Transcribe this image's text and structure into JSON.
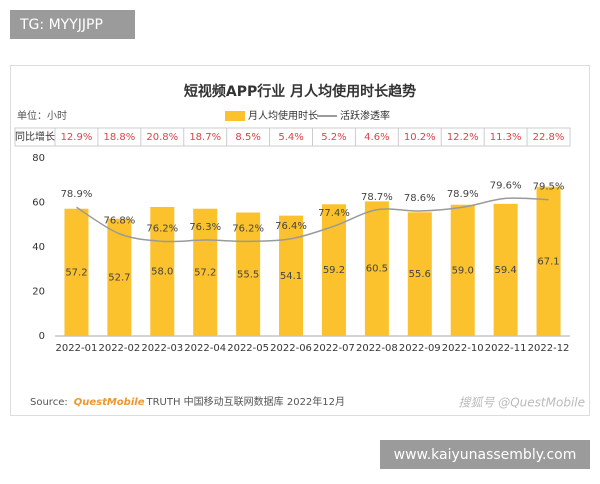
{
  "badge_top": "TG: MYYJJPP",
  "badge_bottom": "www.kaiyunassembly.com",
  "chart_data": {
    "type": "bar",
    "title": "短视频APP行业 月人均使用时长趋势",
    "unit_label": "单位：小时",
    "categories": [
      "2022-01",
      "2022-02",
      "2022-03",
      "2022-04",
      "2022-05",
      "2022-06",
      "2022-07",
      "2022-08",
      "2022-09",
      "2022-10",
      "2022-11",
      "2022-12"
    ],
    "series": [
      {
        "name": "月人均使用时长",
        "type": "bar",
        "color": "#fbc22d",
        "values": [
          57.2,
          52.7,
          58.0,
          57.2,
          55.5,
          54.1,
          59.2,
          60.5,
          55.6,
          59.0,
          59.4,
          67.1
        ],
        "value_labels": [
          "57.2",
          "52.7",
          "58.0",
          "57.2",
          "55.5",
          "54.1",
          "59.2",
          "60.5",
          "55.6",
          "59.0",
          "59.4",
          "67.1"
        ]
      },
      {
        "name": "活跃渗透率",
        "type": "line",
        "axis": "y2",
        "color": "#9a9a9a",
        "values": [
          78.9,
          76.8,
          76.2,
          76.3,
          76.2,
          76.4,
          77.4,
          78.7,
          78.6,
          78.9,
          79.6,
          79.5
        ],
        "value_labels": [
          "78.9%",
          "76.8%",
          "76.2%",
          "76.3%",
          "76.2%",
          "76.4%",
          "77.4%",
          "78.7%",
          "78.6%",
          "78.9%",
          "79.6%",
          "79.5%"
        ]
      }
    ],
    "ylim": [
      0,
      80
    ],
    "yticks": [
      0,
      20,
      40,
      60,
      80
    ],
    "y2lim": [
      68.7,
      82.8
    ],
    "yoy_growth": {
      "label": "同比增长",
      "values": [
        "12.9%",
        "18.8%",
        "20.8%",
        "18.7%",
        "8.5%",
        "5.4%",
        "5.2%",
        "4.6%",
        "10.2%",
        "12.2%",
        "11.3%",
        "22.8%"
      ]
    },
    "source": {
      "prefix": "Source:",
      "brand": "QuestMobile",
      "rest": "TRUTH 中国移动互联网数据库 2022年12月"
    },
    "watermark": "搜狐号 @QuestMobile"
  }
}
